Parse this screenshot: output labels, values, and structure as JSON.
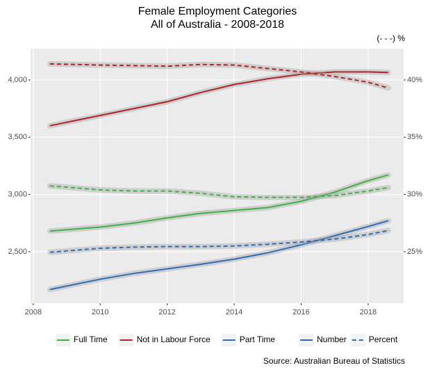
{
  "chart_data": {
    "type": "line",
    "title": [
      "Female Employment Categories",
      "All of Australia - 2008-2018"
    ],
    "y2_label": "(- - -) %",
    "caption": "Source: Australian Bureau of Statistics",
    "x": [
      2008.5,
      2010,
      2011,
      2012,
      2013,
      2014,
      2015,
      2016,
      2017,
      2018,
      2018.6
    ],
    "groups": [
      {
        "name": "Full Time",
        "color": "#3cb53c",
        "number": [
          2680,
          2715,
          2750,
          2795,
          2835,
          2860,
          2885,
          2940,
          3020,
          3120,
          3170
        ],
        "percent": [
          30.75,
          30.4,
          30.3,
          30.3,
          30.1,
          29.8,
          29.75,
          29.75,
          29.9,
          30.3,
          30.6
        ]
      },
      {
        "name": "Not in Labour Force",
        "color": "#b22222",
        "number": [
          3600,
          3690,
          3750,
          3810,
          3890,
          3960,
          4010,
          4050,
          4070,
          4070,
          4065
        ],
        "percent": [
          41.4,
          41.3,
          41.25,
          41.2,
          41.35,
          41.3,
          41.0,
          40.7,
          40.3,
          39.8,
          39.3
        ]
      },
      {
        "name": "Part Time",
        "color": "#2a6ebb",
        "number": [
          2170,
          2260,
          2310,
          2350,
          2390,
          2435,
          2490,
          2560,
          2640,
          2720,
          2770
        ],
        "percent": [
          24.95,
          25.3,
          25.4,
          25.45,
          25.45,
          25.5,
          25.65,
          25.85,
          26.1,
          26.5,
          26.85
        ]
      }
    ],
    "linetypes": [
      "Number",
      "Percent"
    ],
    "xlim": [
      2007.92,
      2019.06
    ],
    "xticks": [
      2008,
      2010,
      2012,
      2014,
      2016,
      2018
    ],
    "ylim": [
      2050,
      4273
    ],
    "yticks": [
      {
        "value": 2500,
        "label": "2,500"
      },
      {
        "value": 3000,
        "label": "3,000"
      },
      {
        "value": 3500,
        "label": "3,500"
      },
      {
        "value": 4000,
        "label": "4,000"
      }
    ],
    "y2lim": [
      20.5,
      42.73
    ],
    "y2ticks": [
      {
        "value": 25,
        "label": "25%"
      },
      {
        "value": 30,
        "label": "30%"
      },
      {
        "value": 35,
        "label": "35%"
      },
      {
        "value": 40,
        "label": "40%"
      }
    ],
    "grid": true
  }
}
